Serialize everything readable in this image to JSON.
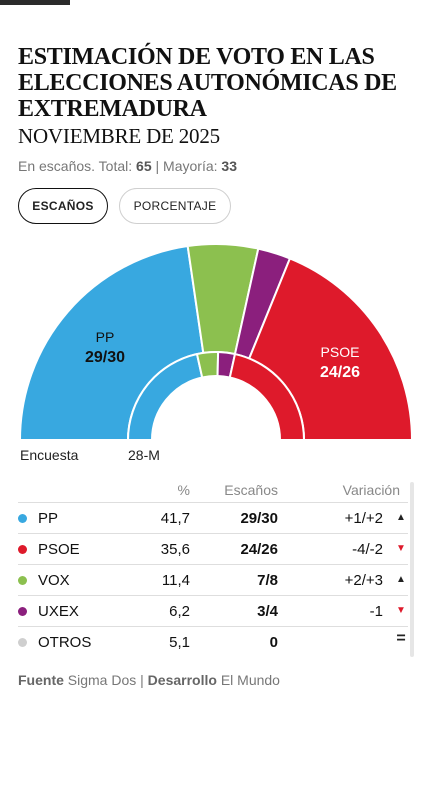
{
  "header": {
    "title": "ESTIMACIÓN DE VOTO EN LAS ELECCIONES AUTONÓMICAS DE EXTREMADURA",
    "subtitle": "NOVIEMBRE DE 2025",
    "meta_prefix": "En escaños. Total:",
    "total": "65",
    "majority_label": "| Mayoría:",
    "majority": "33"
  },
  "toggle": {
    "seats_label": "ESCAÑOS",
    "percent_label": "PORCENTAJE",
    "active": "seats"
  },
  "chart_data": {
    "type": "pie",
    "variant": "parliament-semicircle",
    "rings": [
      {
        "name": "Encuesta",
        "total": 65,
        "slices": [
          {
            "party": "PP",
            "seats": 29.5,
            "color": "#38a8e0"
          },
          {
            "party": "VOX",
            "seats": 7.5,
            "color": "#8cc04f"
          },
          {
            "party": "UXEX",
            "seats": 3.5,
            "color": "#8b1f7d"
          },
          {
            "party": "PSOE",
            "seats": 24.5,
            "color": "#de1a2b"
          }
        ]
      },
      {
        "name": "28-M",
        "total": 65,
        "slices": [
          {
            "party": "PP",
            "seats": 28,
            "color": "#38a8e0"
          },
          {
            "party": "VOX",
            "seats": 5,
            "color": "#8cc04f"
          },
          {
            "party": "UXEX",
            "seats": 4,
            "color": "#8b1f7d"
          },
          {
            "party": "PSOE",
            "seats": 28,
            "color": "#de1a2b"
          }
        ]
      }
    ],
    "labels": [
      {
        "party": "PP",
        "seats": "29/30"
      },
      {
        "party": "PSOE",
        "seats": "24/26"
      }
    ],
    "ring_labels": {
      "outer": "Encuesta",
      "inner": "28-M"
    }
  },
  "table": {
    "headers": {
      "pct": "%",
      "seats": "Escaños",
      "var": "Variación"
    },
    "rows": [
      {
        "party": "PP",
        "pct": "41,7",
        "seats": "29/30",
        "var": "+1/+2",
        "trend": "up",
        "color": "#38a8e0"
      },
      {
        "party": "PSOE",
        "pct": "35,6",
        "seats": "24/26",
        "var": "-4/-2",
        "trend": "down",
        "color": "#de1a2b"
      },
      {
        "party": "VOX",
        "pct": "11,4",
        "seats": "7/8",
        "var": "+2/+3",
        "trend": "up",
        "color": "#8cc04f"
      },
      {
        "party": "UXEX",
        "pct": "6,2",
        "seats": "3/4",
        "var": "-1",
        "trend": "down",
        "color": "#8b1f7d"
      },
      {
        "party": "OTROS",
        "pct": "5,1",
        "seats": "0",
        "var": "",
        "trend": "equal",
        "color": "#cfcfcf"
      }
    ]
  },
  "footer": {
    "source_label": "Fuente",
    "source": "Sigma Dos",
    "dev_label": "Desarrollo",
    "dev": "El Mundo",
    "sep": "|"
  }
}
